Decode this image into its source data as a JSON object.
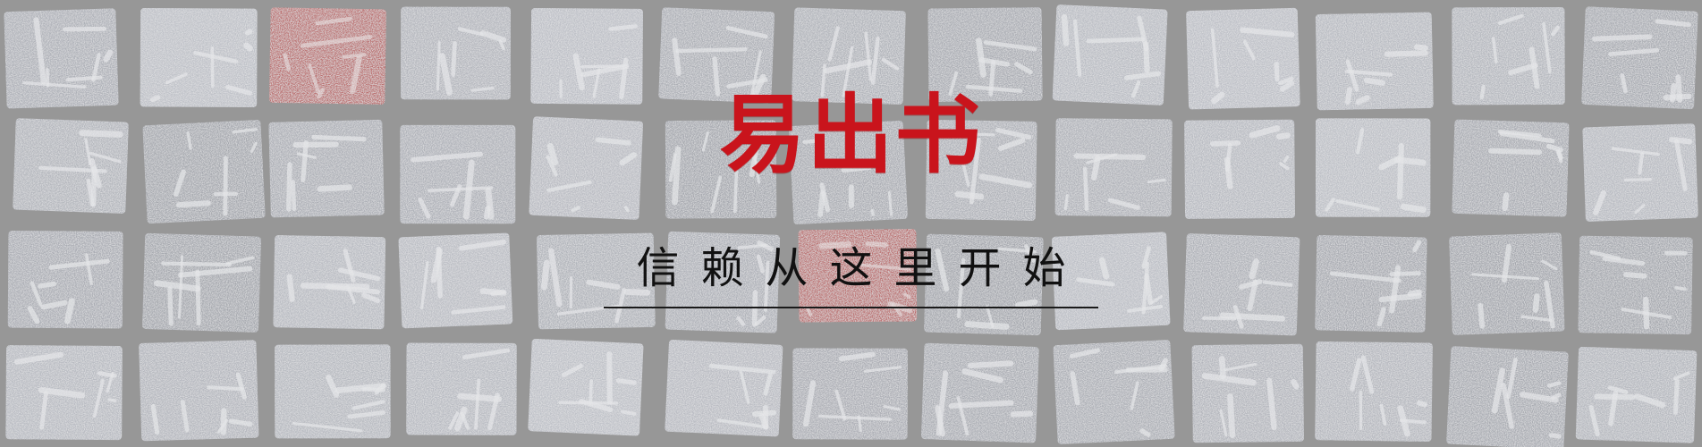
{
  "banner": {
    "title": "易出书",
    "slogan": "信赖从这里开始"
  },
  "colors": {
    "title": "#c9141c",
    "slogan": "#111111",
    "background_tone": "#8a8a8a",
    "highlight_red": "#b23a3a"
  }
}
